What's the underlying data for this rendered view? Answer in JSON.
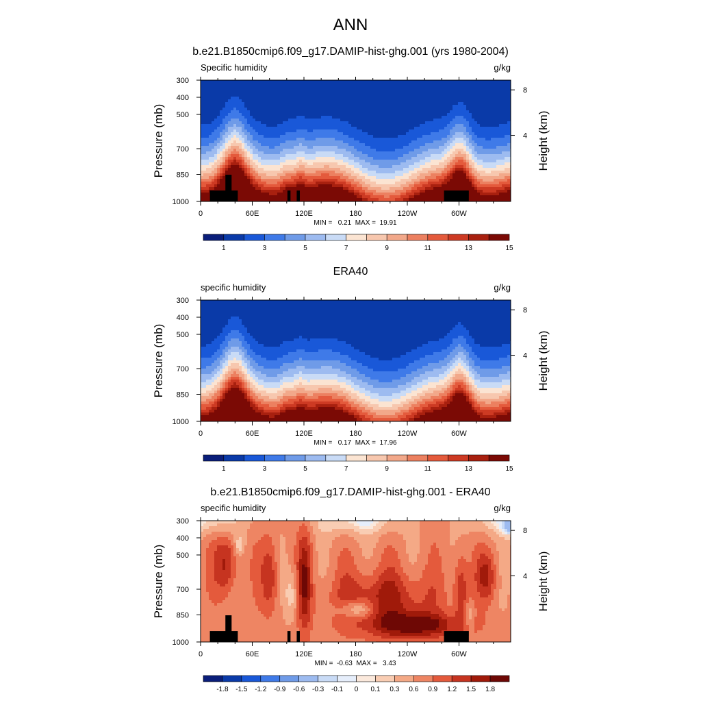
{
  "page_title": "ANN",
  "colors": {
    "main_scale": [
      "#0a1e7a",
      "#0a3aa8",
      "#1958d8",
      "#3f7ae8",
      "#6f9be8",
      "#9dbbf0",
      "#c9dbf6",
      "#fbe4d2",
      "#f7c7ae",
      "#f2a88a",
      "#ec8060",
      "#e45a3c",
      "#cd3a23",
      "#a8200f",
      "#7b0a05"
    ],
    "diff_scale": [
      "#0a1e7a",
      "#0a3aa8",
      "#1958d8",
      "#3f7ae8",
      "#6f9be8",
      "#9dbbf0",
      "#c9dbf6",
      "#e6eefb",
      "#fbe9dc",
      "#f9cdb3",
      "#f4a986",
      "#ee8563",
      "#e45a3c",
      "#c63420",
      "#a01a0a",
      "#6e0805"
    ],
    "topo": "#000000"
  },
  "chart_data": [
    {
      "type": "heatmap",
      "title": "b.e21.B1850cmip6.f09_g17.DAMIP-hist-ghg.001 (yrs 1980-2004)",
      "left_label": "Specific humidity",
      "right_label": "g/kg",
      "ylabel": "Pressure (mb)",
      "y2label": "Height (km)",
      "x_ticks": [
        "0",
        "60E",
        "120E",
        "180",
        "120W",
        "60W"
      ],
      "y_ticks": [
        "300",
        "400",
        "500",
        "700",
        "850",
        "1000"
      ],
      "y2_ticks": [
        "8",
        "4"
      ],
      "stats": "MIN =   0.21  MAX =  19.91",
      "colorbar_labels": [
        "1",
        "3",
        "5",
        "7",
        "9",
        "11",
        "13",
        "15"
      ],
      "has_topography": true
    },
    {
      "type": "heatmap",
      "title": "ERA40",
      "left_label": "specific humidity",
      "right_label": "g/kg",
      "ylabel": "Pressure (mb)",
      "y2label": "Height (km)",
      "x_ticks": [
        "0",
        "60E",
        "120E",
        "180",
        "120W",
        "60W"
      ],
      "y_ticks": [
        "300",
        "400",
        "500",
        "700",
        "850",
        "1000"
      ],
      "y2_ticks": [
        "8",
        "4"
      ],
      "stats": "MIN =   0.17  MAX =  17.96",
      "colorbar_labels": [
        "1",
        "3",
        "5",
        "7",
        "9",
        "11",
        "13",
        "15"
      ],
      "has_topography": false
    },
    {
      "type": "heatmap",
      "title": "b.e21.B1850cmip6.f09_g17.DAMIP-hist-ghg.001 - ERA40",
      "left_label": "specific humidity",
      "right_label": "g/kg",
      "ylabel": "Pressure (mb)",
      "y2label": "Height (km)",
      "x_ticks": [
        "0",
        "60E",
        "120E",
        "180",
        "120W",
        "60W"
      ],
      "y_ticks": [
        "300",
        "400",
        "500",
        "700",
        "850",
        "1000"
      ],
      "y2_ticks": [
        "8",
        "4"
      ],
      "stats": "MIN =  -0.63  MAX =   3.43",
      "colorbar_labels": [
        "-1.8",
        "-1.5",
        "-1.2",
        "-0.9",
        "-0.6",
        "-0.3",
        "-0.1",
        "0",
        "0.1",
        "0.3",
        "0.6",
        "0.9",
        "1.2",
        "1.5",
        "1.8"
      ],
      "has_topography": true
    }
  ]
}
